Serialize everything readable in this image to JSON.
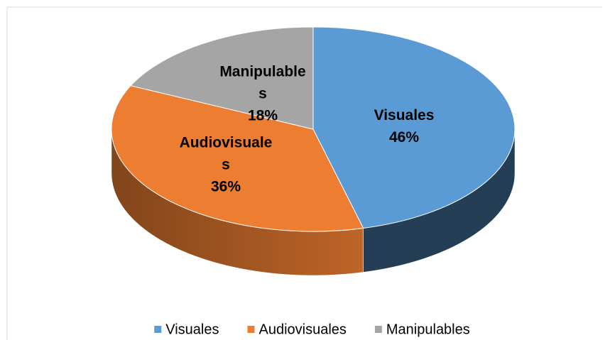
{
  "chart_data": {
    "type": "pie3d",
    "categories": [
      "Visuales",
      "Audiovisuales",
      "Manipulables"
    ],
    "values": [
      46,
      36,
      18
    ],
    "value_labels": [
      "46%",
      "36%",
      "18%"
    ],
    "colors": [
      "#5b9bd5",
      "#ed7d31",
      "#a5a5a5"
    ],
    "legend": "bottom"
  }
}
